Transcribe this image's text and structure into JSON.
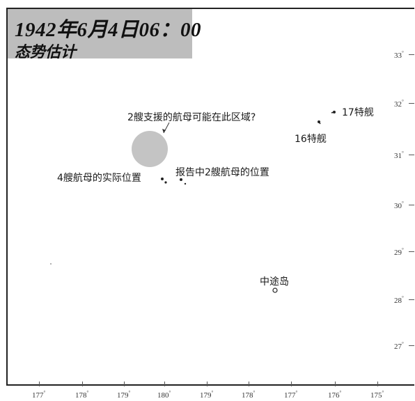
{
  "title": {
    "date": "1942年6月4日06：00",
    "subtitle": "态势估计"
  },
  "latitude_ticks": [
    "33",
    "32",
    "31",
    "30",
    "29",
    "28",
    "27"
  ],
  "longitude_ticks": [
    "177",
    "178",
    "179",
    "180",
    "179",
    "178",
    "177",
    "176",
    "175"
  ],
  "degree_symbol": "°",
  "annotations": {
    "possible_area": "2艘支援的航母可能在此区域?",
    "tf17": "17特舰",
    "tf16": "16特舰",
    "reported_position": "报告中2艘航母的位置",
    "actual_position": "4艘航母的实际位置",
    "midway": "中途岛"
  },
  "colors": {
    "title_background": "#bdbdbd",
    "possible_area_fill": "#c4c4c4",
    "frame": "#222222"
  }
}
